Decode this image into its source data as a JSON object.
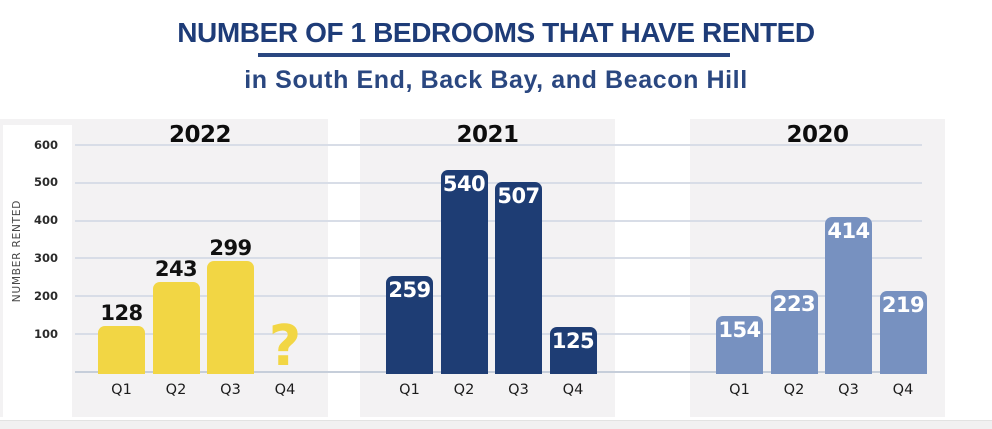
{
  "chart_data": {
    "type": "bar",
    "title": "NUMBER OF 1 BEDROOMS THAT HAVE RENTED",
    "subtitle": "in South End, Back Bay, and Beacon Hill",
    "ylabel": "NUMBER RENTED",
    "categories": [
      "Q1",
      "Q2",
      "Q3",
      "Q4"
    ],
    "y_ticks": [
      600,
      500,
      400,
      300,
      200,
      100
    ],
    "ylim": [
      0,
      620
    ],
    "grid": true,
    "legend": "none",
    "panels": [
      {
        "year": "2022",
        "bar_color": "#F2D644",
        "value_label_position": "above",
        "value_label_color": "#111111",
        "values": [
          128,
          243,
          299,
          null
        ],
        "missing_value_marker": "?"
      },
      {
        "year": "2021",
        "bar_color": "#1E3D74",
        "value_label_position": "inside",
        "value_label_color": "#FFFFFF",
        "values": [
          259,
          540,
          507,
          125
        ],
        "missing_value_marker": null
      },
      {
        "year": "2020",
        "bar_color": "#7791C0",
        "value_label_position": "inside",
        "value_label_color": "#FFFFFF",
        "values": [
          154,
          223,
          414,
          219
        ],
        "missing_value_marker": null
      }
    ]
  },
  "colors": {
    "title_navy": "#1E3C78",
    "underline_navy": "#2A4780",
    "gridline": "#D8DDE7",
    "baseline": "#C6CEDA",
    "panel_bg": "#F3F2F3",
    "bottom_strip": "#F1F0F1",
    "yellow": "#F2D644",
    "navy": "#1E3D74",
    "slate": "#7791C0"
  }
}
